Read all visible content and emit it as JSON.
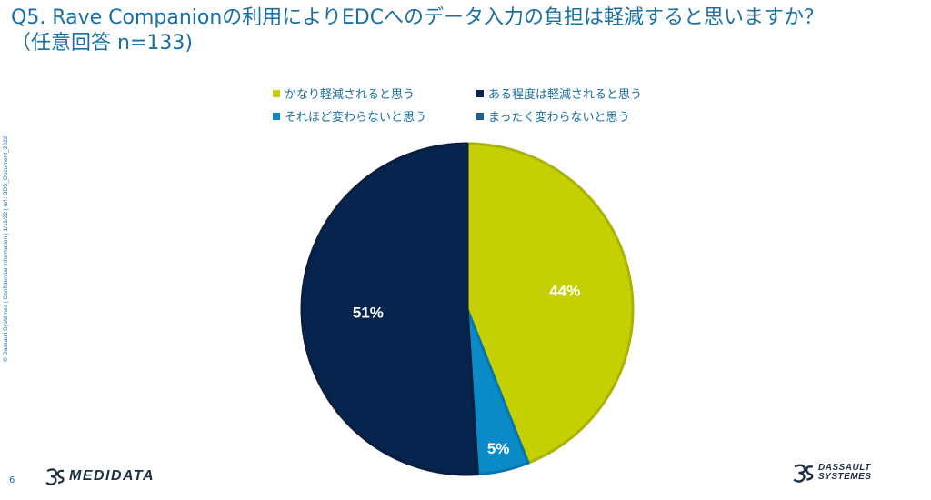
{
  "title_line1": "Q5. Rave Companionの利用によりEDCへのデータ入力の負担は軽減すると思いますか？",
  "title_line2": "（任意回答 n=133)",
  "side_note": "© Dassault Systèmes | Confidential Information | 1/11/22 | ref.: 3DS_Document_2022",
  "page_number": "6",
  "brand_left": "MEDIDATA",
  "brand_right_line1": "DASSAULT",
  "brand_right_line2": "SYSTEMES",
  "chart_data": {
    "type": "pie",
    "title": "",
    "legend_position": "top",
    "series": [
      {
        "label": "かなり軽減されると思う",
        "value": 44,
        "display": "44%",
        "color": "#c5d000"
      },
      {
        "label": "ある程度は軽減されると思う",
        "value": 51,
        "display": "51%",
        "color": "#05254e"
      },
      {
        "label": "それほど変わらないと思う",
        "value": 5,
        "display": "5%",
        "color": "#0a8ac7"
      },
      {
        "label": "まったく変わらないと思う",
        "value": 0,
        "display": "",
        "color": "#1c5f8c"
      }
    ]
  }
}
